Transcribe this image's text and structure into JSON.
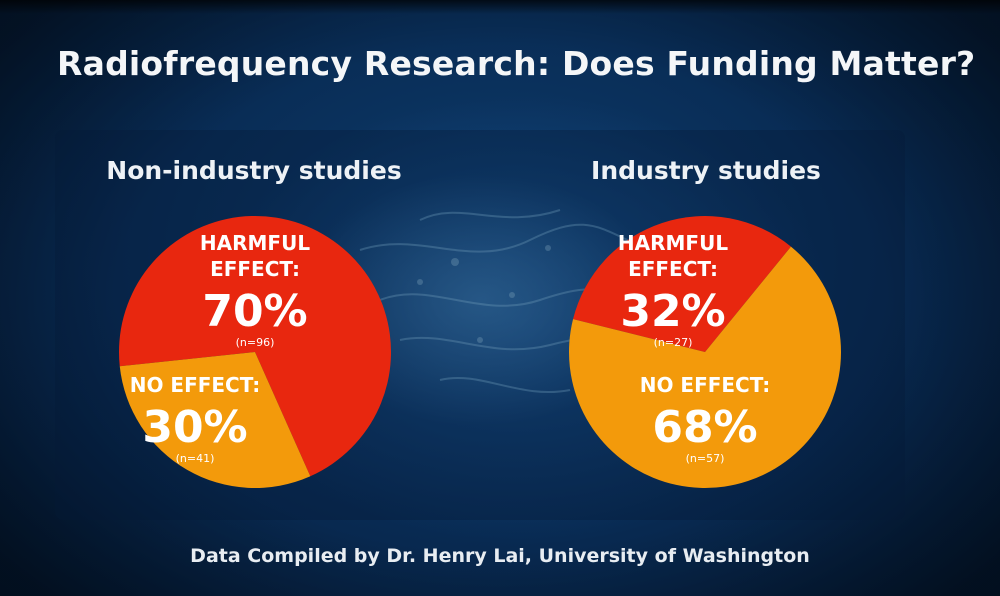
{
  "title": "Radiofrequency Research: Does Funding Matter?",
  "footer": "Data Compiled by Dr. Henry Lai, University of Washington",
  "colors": {
    "harmful": "#e8270f",
    "no_effect": "#f39a0b",
    "text": "#ffffff",
    "background": "#0b3563"
  },
  "chart_data": [
    {
      "type": "pie",
      "title": "Non-industry studies",
      "slices": [
        {
          "label_line1": "HARMFUL",
          "label_line2": "EFFECT:",
          "percent": "70%",
          "value": 70,
          "n": "(n=96)",
          "color": "#e8270f"
        },
        {
          "label_line1": "NO EFFECT:",
          "label_line2": "",
          "percent": "30%",
          "value": 30,
          "n": "(n=41)",
          "color": "#f39a0b"
        }
      ]
    },
    {
      "type": "pie",
      "title": "Industry studies",
      "slices": [
        {
          "label_line1": "HARMFUL",
          "label_line2": "EFFECT:",
          "percent": "32%",
          "value": 32,
          "n": "(n=27)",
          "color": "#e8270f"
        },
        {
          "label_line1": "NO EFFECT:",
          "label_line2": "",
          "percent": "68%",
          "value": 68,
          "n": "(n=57)",
          "color": "#f39a0b"
        }
      ]
    }
  ]
}
